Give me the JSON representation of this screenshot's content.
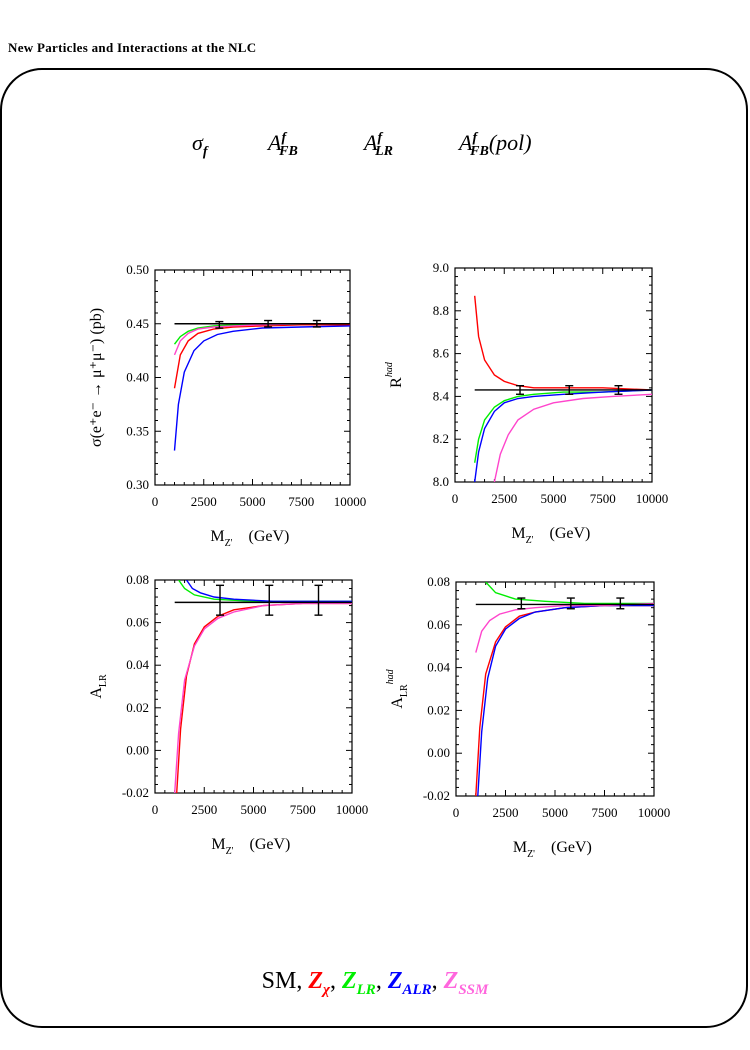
{
  "header": "New Particles and Interactions at the NLC",
  "observables": {
    "sigma": "σ",
    "sigma_sub": "f",
    "afb": "A",
    "afb_sup": "f",
    "afb_sub": "FB",
    "alr": "A",
    "alr_sup": "f",
    "alr_sub": "LR",
    "afbpol": "A",
    "afbpol_sup": "f",
    "afbpol_sub": "FB",
    "afbpol_tail": "(pol)"
  },
  "legend": {
    "sm": "SM,",
    "zchi": "Z",
    "zchi_sub": "χ",
    "zlr": "Z",
    "zlr_sub": "LR",
    "zalr": "Z",
    "zalr_sub": "ALR",
    "zssm": "Z",
    "zssm_sub": "SSM",
    "sep": ",",
    "colors": {
      "SM": "#000000",
      "Zchi": "#ff0000",
      "ZLR": "#00ee00",
      "ZALR": "#0000ff",
      "ZSSM": "#ff44cc"
    }
  },
  "chart_data": [
    {
      "type": "line",
      "ylabel": "σ(e⁺e⁻ → μ⁺μ⁻)   (pb)",
      "xlabel_main": "M",
      "xlabel_sub": "Z'",
      "xlabel_unit": "(GeV)",
      "xlim": [
        0,
        10000
      ],
      "ylim": [
        0.3,
        0.5
      ],
      "xticks": [
        "0",
        "2500",
        "5000",
        "7500",
        "10000"
      ],
      "yticks": [
        "0.30",
        "0.35",
        "0.40",
        "0.45",
        "0.50"
      ],
      "sm_value": 0.45,
      "error_bars": [
        {
          "x": 3300,
          "y": 0.449,
          "err": 0.003
        },
        {
          "x": 5800,
          "y": 0.45,
          "err": 0.003
        },
        {
          "x": 8300,
          "y": 0.45,
          "err": 0.003
        }
      ],
      "series": [
        {
          "name": "Zχ",
          "color_key": "Zchi",
          "x": [
            1000,
            1300,
            1700,
            2200,
            3000,
            4000,
            5500,
            7500,
            10000
          ],
          "y": [
            0.39,
            0.421,
            0.434,
            0.441,
            0.445,
            0.447,
            0.448,
            0.449,
            0.449
          ]
        },
        {
          "name": "ZLR",
          "color_key": "ZLR",
          "x": [
            1000,
            1300,
            1700,
            2200,
            3000,
            4000,
            5500,
            7500,
            10000
          ],
          "y": [
            0.431,
            0.438,
            0.443,
            0.446,
            0.448,
            0.449,
            0.449,
            0.45,
            0.45
          ]
        },
        {
          "name": "ZALR",
          "color_key": "ZALR",
          "x": [
            1000,
            1200,
            1500,
            2000,
            2500,
            3200,
            4000,
            5500,
            7500,
            10000
          ],
          "y": [
            0.332,
            0.375,
            0.405,
            0.425,
            0.434,
            0.44,
            0.443,
            0.446,
            0.447,
            0.448
          ]
        },
        {
          "name": "ZSSM",
          "color_key": "ZSSM",
          "x": [
            1000,
            1300,
            1700,
            2200,
            3000,
            4000,
            5500,
            7500,
            10000
          ],
          "y": [
            0.421,
            0.434,
            0.441,
            0.445,
            0.447,
            0.448,
            0.449,
            0.45,
            0.45
          ]
        }
      ]
    },
    {
      "type": "line",
      "ylabel": "R",
      "ylabel_sup": "had",
      "xlabel_main": "M",
      "xlabel_sub": "Z'",
      "xlabel_unit": "(GeV)",
      "xlim": [
        0,
        10000
      ],
      "ylim": [
        8.0,
        9.0
      ],
      "xticks": [
        "0",
        "2500",
        "5000",
        "7500",
        "10000"
      ],
      "yticks": [
        "8.0",
        "8.2",
        "8.4",
        "8.6",
        "8.8",
        "9.0"
      ],
      "sm_value": 8.43,
      "error_bars": [
        {
          "x": 3300,
          "y": 8.43,
          "err": 0.02
        },
        {
          "x": 5800,
          "y": 8.43,
          "err": 0.02
        },
        {
          "x": 8300,
          "y": 8.43,
          "err": 0.02
        }
      ],
      "series": [
        {
          "name": "Zχ",
          "color_key": "Zchi",
          "x": [
            1000,
            1200,
            1500,
            2000,
            2500,
            3200,
            4000,
            5500,
            7500,
            10000
          ],
          "y": [
            8.87,
            8.68,
            8.57,
            8.5,
            8.47,
            8.45,
            8.44,
            8.44,
            8.44,
            8.43
          ]
        },
        {
          "name": "ZLR",
          "color_key": "ZLR",
          "x": [
            1000,
            1200,
            1500,
            2000,
            2500,
            3200,
            4000,
            5500,
            7500,
            10000
          ],
          "y": [
            8.09,
            8.2,
            8.29,
            8.35,
            8.38,
            8.4,
            8.41,
            8.42,
            8.42,
            8.43
          ]
        },
        {
          "name": "ZALR",
          "color_key": "ZALR",
          "x": [
            1000,
            1200,
            1500,
            2000,
            2500,
            3200,
            4000,
            5500,
            7500,
            10000
          ],
          "y": [
            8.0,
            8.14,
            8.25,
            8.33,
            8.37,
            8.39,
            8.4,
            8.41,
            8.42,
            8.43
          ]
        },
        {
          "name": "ZSSM",
          "color_key": "ZSSM",
          "x": [
            2000,
            2300,
            2700,
            3200,
            4000,
            5000,
            6500,
            8000,
            10000
          ],
          "y": [
            8.0,
            8.13,
            8.22,
            8.29,
            8.34,
            8.37,
            8.39,
            8.4,
            8.41
          ]
        }
      ]
    },
    {
      "type": "line",
      "ylabel": "A",
      "ylabel_sub": "LR",
      "xlabel_main": "M",
      "xlabel_sub": "Z'",
      "xlabel_unit": "(GeV)",
      "xlim": [
        0,
        10000
      ],
      "ylim": [
        -0.02,
        0.08
      ],
      "xticks": [
        "0",
        "2500",
        "5000",
        "7500",
        "10000"
      ],
      "yticks": [
        "-0.02",
        "0.00",
        "0.02",
        "0.04",
        "0.06",
        "0.08"
      ],
      "sm_value": 0.0695,
      "error_bars": [
        {
          "x": 3300,
          "y": 0.0705,
          "err": 0.007
        },
        {
          "x": 5800,
          "y": 0.0705,
          "err": 0.007
        },
        {
          "x": 8300,
          "y": 0.0705,
          "err": 0.007
        }
      ],
      "series": [
        {
          "name": "Zχ",
          "color_key": "Zchi",
          "x": [
            1100,
            1300,
            1600,
            2000,
            2500,
            3200,
            4000,
            5500,
            7500,
            10000
          ],
          "y": [
            -0.02,
            0.01,
            0.035,
            0.05,
            0.058,
            0.063,
            0.066,
            0.068,
            0.069,
            0.069
          ]
        },
        {
          "name": "ZLR",
          "color_key": "ZLR",
          "x": [
            1200,
            1500,
            2000,
            3000,
            5000,
            10000
          ],
          "y": [
            0.08,
            0.076,
            0.073,
            0.071,
            0.07,
            0.07
          ]
        },
        {
          "name": "ZALR",
          "color_key": "ZALR",
          "x": [
            1600,
            1900,
            2300,
            3000,
            4000,
            6000,
            10000
          ],
          "y": [
            0.08,
            0.076,
            0.074,
            0.072,
            0.071,
            0.07,
            0.07
          ]
        },
        {
          "name": "ZSSM",
          "color_key": "ZSSM",
          "x": [
            1000,
            1200,
            1500,
            2000,
            2500,
            3200,
            4000,
            5500,
            7500,
            10000
          ],
          "y": [
            -0.02,
            0.008,
            0.033,
            0.049,
            0.057,
            0.062,
            0.065,
            0.068,
            0.069,
            0.069
          ]
        }
      ]
    },
    {
      "type": "line",
      "ylabel": "A",
      "ylabel_sub": "LR",
      "ylabel_sup": "had",
      "xlabel_main": "M",
      "xlabel_sub": "Z'",
      "xlabel_unit": "(GeV)",
      "xlim": [
        0,
        10000
      ],
      "ylim": [
        -0.02,
        0.08
      ],
      "xticks": [
        "0",
        "2500",
        "5000",
        "7500",
        "10000"
      ],
      "yticks": [
        "-0.02",
        "0.00",
        "0.02",
        "0.04",
        "0.06",
        "0.08"
      ],
      "sm_value": 0.0695,
      "error_bars": [
        {
          "x": 3300,
          "y": 0.07,
          "err": 0.0025
        },
        {
          "x": 5800,
          "y": 0.07,
          "err": 0.0025
        },
        {
          "x": 8300,
          "y": 0.07,
          "err": 0.0025
        }
      ],
      "series": [
        {
          "name": "Zχ",
          "color_key": "Zchi",
          "x": [
            1000,
            1200,
            1500,
            2000,
            2500,
            3200,
            4000,
            5500,
            7500,
            10000
          ],
          "y": [
            -0.02,
            0.012,
            0.037,
            0.052,
            0.059,
            0.064,
            0.066,
            0.068,
            0.069,
            0.069
          ]
        },
        {
          "name": "ZLR",
          "color_key": "ZLR",
          "x": [
            1500,
            2000,
            3000,
            4500,
            6500,
            10000
          ],
          "y": [
            0.08,
            0.075,
            0.072,
            0.071,
            0.07,
            0.07
          ]
        },
        {
          "name": "ZALR",
          "color_key": "ZALR",
          "x": [
            1100,
            1300,
            1600,
            2000,
            2500,
            3200,
            4000,
            5500,
            7500,
            10000
          ],
          "y": [
            -0.02,
            0.01,
            0.035,
            0.05,
            0.058,
            0.063,
            0.066,
            0.068,
            0.069,
            0.069
          ]
        },
        {
          "name": "ZSSM",
          "color_key": "ZSSM",
          "x": [
            1000,
            1300,
            1700,
            2200,
            3000,
            4000,
            5500,
            7500,
            10000
          ],
          "y": [
            0.047,
            0.057,
            0.062,
            0.065,
            0.067,
            0.068,
            0.069,
            0.069,
            0.07
          ]
        }
      ]
    }
  ]
}
